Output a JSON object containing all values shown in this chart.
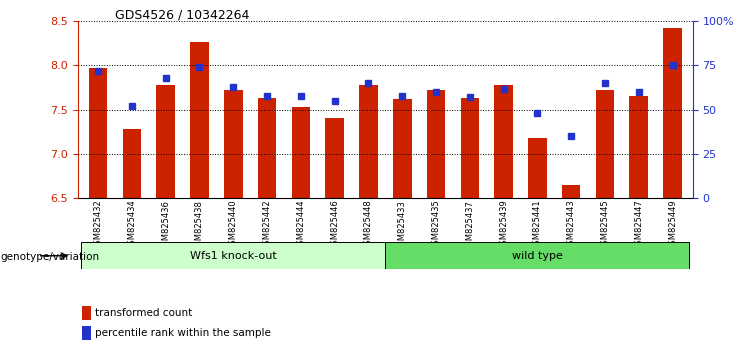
{
  "title": "GDS4526 / 10342264",
  "samples": [
    "GSM825432",
    "GSM825434",
    "GSM825436",
    "GSM825438",
    "GSM825440",
    "GSM825442",
    "GSM825444",
    "GSM825446",
    "GSM825448",
    "GSM825433",
    "GSM825435",
    "GSM825437",
    "GSM825439",
    "GSM825441",
    "GSM825443",
    "GSM825445",
    "GSM825447",
    "GSM825449"
  ],
  "red_values": [
    7.97,
    7.28,
    7.78,
    8.27,
    7.72,
    7.63,
    7.53,
    7.41,
    7.78,
    7.62,
    7.72,
    7.63,
    7.78,
    7.18,
    6.65,
    7.72,
    7.65,
    8.42
  ],
  "blue_values": [
    72,
    52,
    68,
    74,
    63,
    58,
    58,
    55,
    65,
    58,
    60,
    57,
    62,
    48,
    35,
    65,
    60,
    75
  ],
  "ylim_left": [
    6.5,
    8.5
  ],
  "ylim_right": [
    0,
    100
  ],
  "yticks_left": [
    6.5,
    7.0,
    7.5,
    8.0,
    8.5
  ],
  "yticks_right": [
    0,
    25,
    50,
    75,
    100
  ],
  "ytick_labels_right": [
    "0",
    "25",
    "50",
    "75",
    "100%"
  ],
  "group1_label": "Wfs1 knock-out",
  "group2_label": "wild type",
  "group1_count": 9,
  "group2_count": 9,
  "group_label_prefix": "genotype/variation",
  "legend_red": "transformed count",
  "legend_blue": "percentile rank within the sample",
  "bar_color": "#cc2200",
  "blue_color": "#2233cc",
  "bg_color": "#ffffff",
  "plot_bg": "#ffffff",
  "group1_bg": "#ccffcc",
  "group2_bg": "#66dd66",
  "bar_width": 0.55,
  "baseline": 6.5,
  "left_color": "#cc2200",
  "right_color": "#2233cc"
}
